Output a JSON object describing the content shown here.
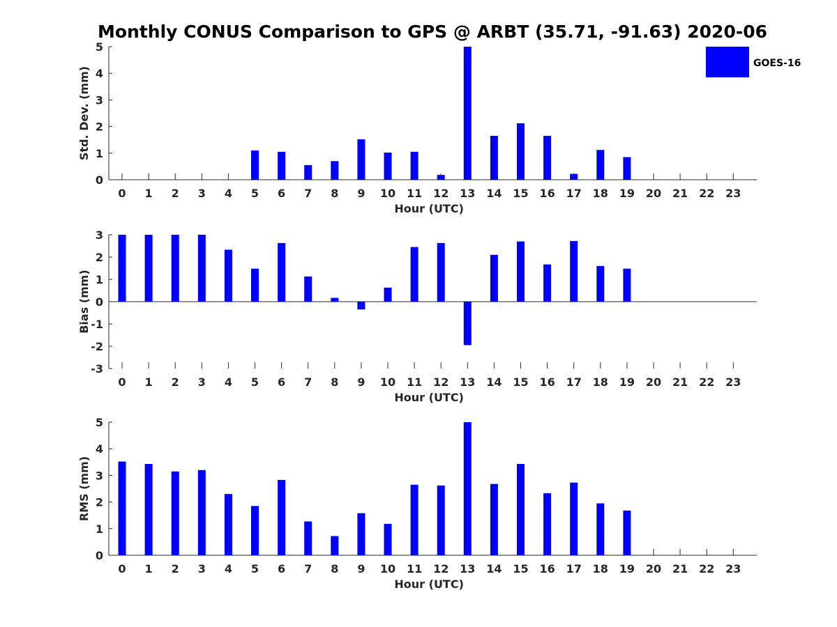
{
  "chart_data": {
    "title": "Monthly CONUS Comparison to GPS @ ARBT (35.71, -91.63) 2020-06",
    "legend": {
      "label": "GOES-16",
      "color": "#0000ff",
      "placement": "top-right"
    },
    "panels": [
      {
        "type": "bar",
        "ylabel": "Std. Dev. (mm)",
        "xlabel": "Hour (UTC)",
        "ylim": [
          0,
          5
        ],
        "yticks": [
          0,
          1,
          2,
          3,
          4,
          5
        ],
        "categories": [
          0,
          1,
          2,
          3,
          4,
          5,
          6,
          7,
          8,
          9,
          10,
          11,
          12,
          13,
          14,
          15,
          16,
          17,
          18,
          19,
          20,
          21,
          22,
          23
        ],
        "values": [
          null,
          null,
          null,
          null,
          null,
          1.1,
          1.05,
          0.55,
          0.7,
          1.52,
          1.02,
          1.05,
          0.18,
          5.0,
          1.65,
          2.12,
          1.65,
          0.22,
          1.12,
          0.85,
          null,
          null,
          null,
          null
        ]
      },
      {
        "type": "bar",
        "ylabel": "Bias (mm)",
        "xlabel": "Hour (UTC)",
        "ylim": [
          -3,
          3
        ],
        "yticks": [
          -3,
          -2,
          -1,
          0,
          1,
          2,
          3
        ],
        "categories": [
          0,
          1,
          2,
          3,
          4,
          5,
          6,
          7,
          8,
          9,
          10,
          11,
          12,
          13,
          14,
          15,
          16,
          17,
          18,
          19,
          20,
          21,
          22,
          23
        ],
        "values": [
          3.0,
          3.0,
          3.0,
          3.0,
          2.33,
          1.48,
          2.63,
          1.13,
          0.17,
          -0.35,
          0.63,
          2.45,
          2.63,
          -1.95,
          2.1,
          2.7,
          1.67,
          2.72,
          1.6,
          1.48,
          null,
          null,
          null,
          null
        ]
      },
      {
        "type": "bar",
        "ylabel": "RMS (mm)",
        "xlabel": "Hour (UTC)",
        "ylim": [
          0,
          5
        ],
        "yticks": [
          0,
          1,
          2,
          3,
          4,
          5
        ],
        "categories": [
          0,
          1,
          2,
          3,
          4,
          5,
          6,
          7,
          8,
          9,
          10,
          11,
          12,
          13,
          14,
          15,
          16,
          17,
          18,
          19,
          20,
          21,
          22,
          23
        ],
        "values": [
          3.52,
          3.43,
          3.15,
          3.2,
          2.3,
          1.85,
          2.83,
          1.27,
          0.72,
          1.58,
          1.18,
          2.65,
          2.62,
          5.0,
          2.68,
          3.43,
          2.33,
          2.73,
          1.95,
          1.68,
          null,
          null,
          null,
          null
        ]
      }
    ]
  }
}
